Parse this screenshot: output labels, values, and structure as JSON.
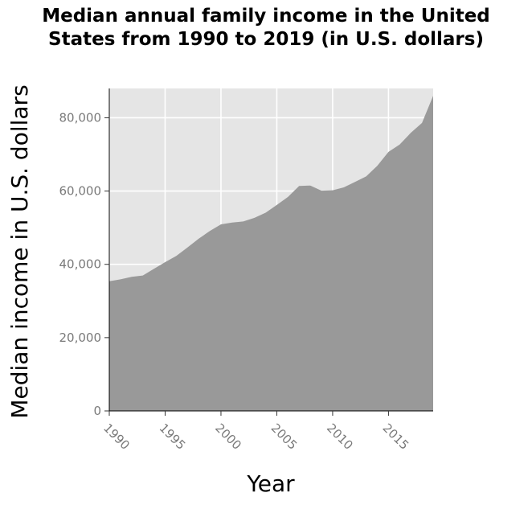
{
  "chart_data": {
    "type": "area",
    "title_lines": [
      "Median annual family income in the United",
      "States from 1990 to 2019 (in U.S. dollars)"
    ],
    "xlabel": "Year",
    "ylabel": "Median income in U.S. dollars",
    "xlim": [
      1990,
      2019
    ],
    "ylim": [
      0,
      88000
    ],
    "x_ticks": [
      1990,
      1995,
      2000,
      2005,
      2010,
      2015
    ],
    "x_tick_labels": [
      "1990",
      "1995",
      "2000",
      "2005",
      "2010",
      "2015"
    ],
    "y_ticks": [
      0,
      20000,
      40000,
      60000,
      80000
    ],
    "y_tick_labels": [
      "0",
      "20,000",
      "40,000",
      "60,000",
      "80,000"
    ],
    "grid": true,
    "colors": {
      "panel": "#e5e5e5",
      "grid": "#ffffff",
      "area": "#999999"
    },
    "series": [
      {
        "x": [
          1990,
          1991,
          1992,
          1993,
          1994,
          1995,
          1996,
          1997,
          1998,
          1999,
          2000,
          2001,
          2002,
          2003,
          2004,
          2005,
          2006,
          2007,
          2008,
          2009,
          2010,
          2011,
          2012,
          2013,
          2014,
          2015,
          2016,
          2017,
          2018,
          2019
        ],
        "values": [
          35400,
          35900,
          36600,
          36950,
          38800,
          40600,
          42300,
          44600,
          47000,
          49100,
          50900,
          51400,
          51700,
          52700,
          54100,
          56200,
          58400,
          61400,
          61500,
          60100,
          60200,
          61000,
          62500,
          64000,
          66900,
          70700,
          72700,
          75900,
          78600,
          86000
        ]
      }
    ]
  }
}
